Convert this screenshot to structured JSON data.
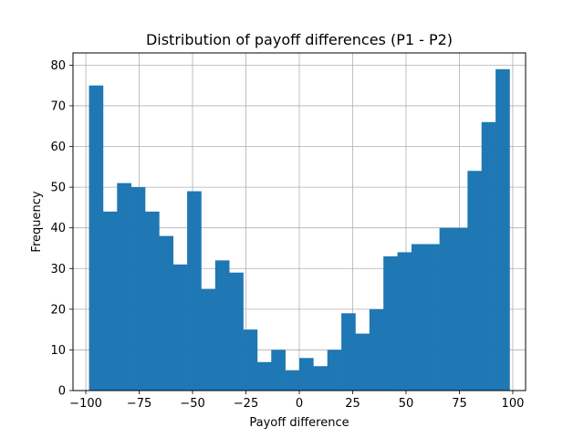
{
  "chart_data": {
    "type": "bar",
    "histogram": true,
    "title": "Distribution of payoff differences (P1 - P2)",
    "xlabel": "Payoff difference",
    "ylabel": "Frequency",
    "xlim": [
      -106,
      106
    ],
    "ylim": [
      0,
      83
    ],
    "grid": true,
    "bar_color": "#1f77b4",
    "x_ticks": [
      -100,
      -75,
      -50,
      -25,
      0,
      25,
      50,
      75,
      100
    ],
    "x_tick_labels": [
      "−100",
      "−75",
      "−50",
      "−25",
      "0",
      "25",
      "50",
      "75",
      "100"
    ],
    "y_ticks": [
      0,
      10,
      20,
      30,
      40,
      50,
      60,
      70,
      80
    ],
    "y_tick_labels": [
      "0",
      "10",
      "20",
      "30",
      "40",
      "50",
      "60",
      "70",
      "80"
    ],
    "bin_start": -98.5,
    "bin_end": 98.5,
    "values": [
      75,
      44,
      51,
      50,
      44,
      38,
      31,
      49,
      25,
      32,
      29,
      15,
      7,
      10,
      5,
      8,
      6,
      10,
      19,
      14,
      20,
      33,
      34,
      36,
      36,
      40,
      40,
      54,
      66,
      79
    ]
  }
}
